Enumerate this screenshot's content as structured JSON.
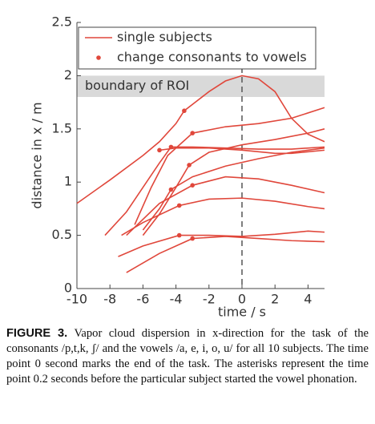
{
  "chart_data": {
    "type": "line",
    "ylabel": "distance in x / m",
    "xlabel": "time / s",
    "xlim": [
      -10,
      5
    ],
    "ylim": [
      0,
      2.5
    ],
    "xticks": [
      -10,
      -8,
      -6,
      -4,
      -2,
      0,
      2,
      4
    ],
    "yticks": [
      0,
      0.5,
      1,
      1.5,
      2,
      2.5
    ],
    "color": "#e0473b",
    "roi": {
      "label": "boundary of ROI",
      "range": [
        1.8,
        2.0
      ],
      "color": "#d9d9d9"
    },
    "vline": 0,
    "legend": [
      "single subjects",
      "change consonants to vowels"
    ],
    "series": [
      {
        "x": [
          -10,
          -8,
          -6,
          -5,
          -4,
          -3.5,
          -2,
          -1,
          0,
          1,
          2,
          3,
          4,
          5
        ],
        "values": [
          0.8,
          1.02,
          1.25,
          1.38,
          1.55,
          1.67,
          1.85,
          1.95,
          2.0,
          1.97,
          1.85,
          1.6,
          1.45,
          1.38
        ]
      },
      {
        "x": [
          -8.3,
          -7,
          -6,
          -5,
          -4.3,
          -3,
          -1,
          1,
          3,
          5
        ],
        "values": [
          0.5,
          0.72,
          0.95,
          1.18,
          1.33,
          1.33,
          1.32,
          1.31,
          1.31,
          1.33
        ]
      },
      {
        "x": [
          -5,
          -4,
          -2,
          0,
          2,
          3,
          5
        ],
        "values": [
          1.3,
          1.32,
          1.32,
          1.3,
          1.27,
          1.27,
          1.3
        ]
      },
      {
        "x": [
          -6.5,
          -5.5,
          -4.5,
          -3,
          -1,
          1,
          3,
          5
        ],
        "values": [
          0.6,
          0.95,
          1.25,
          1.46,
          1.52,
          1.55,
          1.6,
          1.7
        ]
      },
      {
        "x": [
          -6,
          -5,
          -4,
          -3.2,
          -2,
          0,
          2,
          4,
          5
        ],
        "values": [
          0.5,
          0.7,
          0.95,
          1.16,
          1.28,
          1.35,
          1.4,
          1.46,
          1.5
        ]
      },
      {
        "x": [
          -6,
          -5,
          -4.3,
          -3,
          -1,
          1,
          3,
          5
        ],
        "values": [
          0.55,
          0.75,
          0.93,
          1.05,
          1.15,
          1.22,
          1.28,
          1.32
        ]
      },
      {
        "x": [
          -7,
          -5,
          -3,
          -1,
          1,
          3,
          5
        ],
        "values": [
          0.5,
          0.8,
          0.97,
          1.05,
          1.03,
          0.97,
          0.9
        ]
      },
      {
        "x": [
          -7.3,
          -6,
          -3.8,
          -2,
          0,
          2,
          4,
          5
        ],
        "values": [
          0.5,
          0.62,
          0.78,
          0.84,
          0.85,
          0.82,
          0.77,
          0.75
        ]
      },
      {
        "x": [
          -7.5,
          -6,
          -3.8,
          -2,
          0,
          2,
          4,
          5
        ],
        "values": [
          0.3,
          0.4,
          0.5,
          0.5,
          0.49,
          0.51,
          0.54,
          0.53
        ]
      },
      {
        "x": [
          -7,
          -5,
          -3,
          -1,
          1,
          3,
          5
        ],
        "values": [
          0.15,
          0.33,
          0.47,
          0.49,
          0.47,
          0.45,
          0.44
        ]
      }
    ],
    "markers": {
      "x": [
        -3.5,
        -4.3,
        -5,
        -3,
        -3.2,
        -4.3,
        -3,
        -3.8,
        -3.8,
        -3
      ],
      "values": [
        1.67,
        1.33,
        1.3,
        1.46,
        1.16,
        0.93,
        0.97,
        0.78,
        0.5,
        0.47
      ]
    }
  },
  "caption": {
    "label": "FIGURE 3.",
    "text": "Vapor cloud dispersion in x-direction for the task of the consonants /p,t,k, ʃ/ and the vowels /a, e, i, o, u/ for all 10 subjects. The time point 0 second marks the end of the task. The asterisks represent the time point 0.2 seconds before the particular subject started the vowel phonation."
  }
}
